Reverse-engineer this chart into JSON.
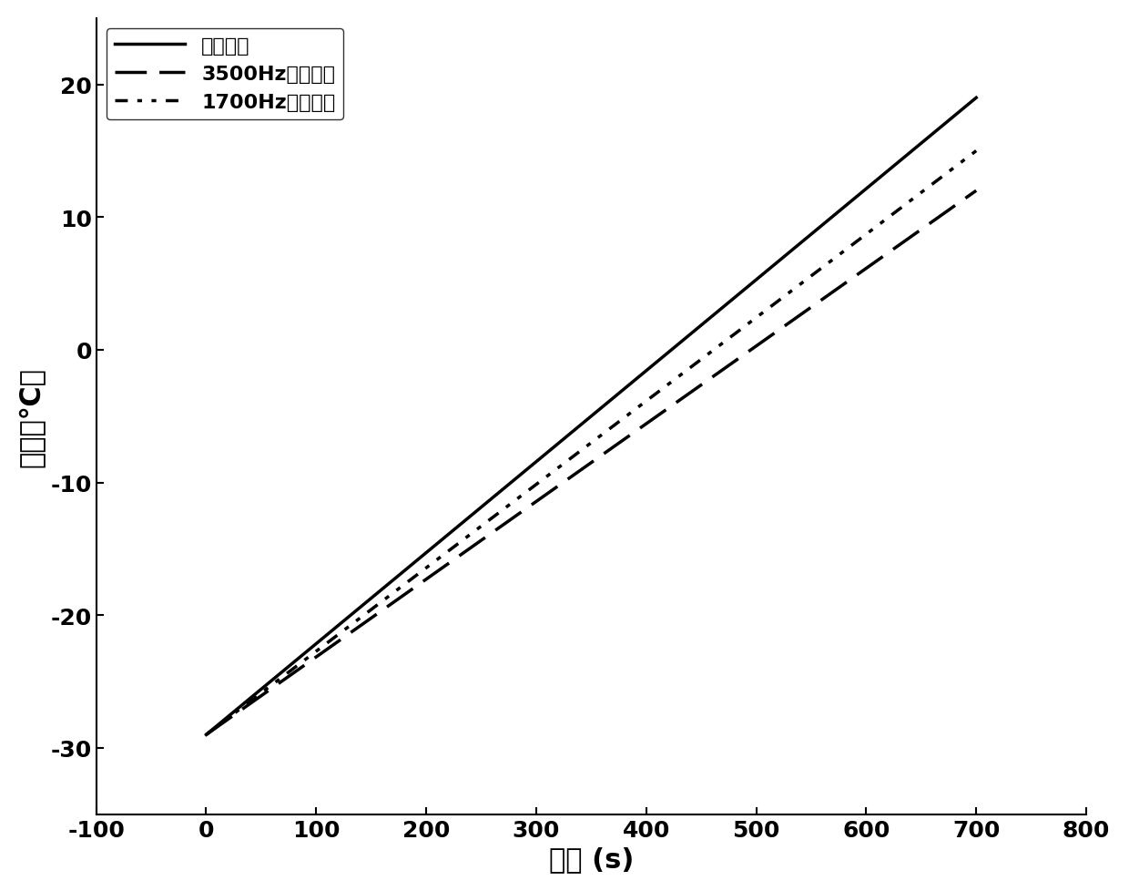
{
  "title": "",
  "xlabel": "时间 (s)",
  "ylabel": "温度（℃）",
  "xlim": [
    -100,
    800
  ],
  "ylim": [
    -35,
    25
  ],
  "xticks": [
    -100,
    0,
    100,
    200,
    300,
    400,
    500,
    600,
    700,
    800
  ],
  "yticks": [
    -30,
    -20,
    -10,
    0,
    10,
    20
  ],
  "line1": {
    "label": "变频变幅",
    "color": "#000000",
    "linewidth": 2.5,
    "x": [
      0,
      700
    ],
    "y": [
      -29,
      19
    ]
  },
  "line2": {
    "label": "3500Hz恒频变幅",
    "color": "#000000",
    "linewidth": 2.5,
    "x": [
      0,
      700
    ],
    "y": [
      -29,
      12
    ]
  },
  "line3": {
    "label": "1700Hz恒频变幅",
    "color": "#000000",
    "linewidth": 2.5,
    "x": [
      0,
      700
    ],
    "y": [
      -29,
      15
    ]
  },
  "legend_loc": "upper left",
  "legend_fontsize": 16,
  "axis_fontsize": 22,
  "tick_fontsize": 18,
  "background_color": "#ffffff"
}
